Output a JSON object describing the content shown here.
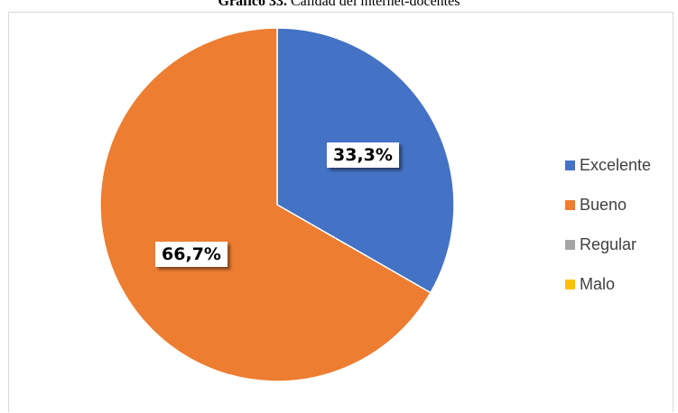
{
  "caption": {
    "number": "Gráfico 33.",
    "text": "Calidad del internet-docentes"
  },
  "chart_data": {
    "type": "pie",
    "title": "",
    "categories": [
      "Excelente",
      "Bueno",
      "Regular",
      "Malo"
    ],
    "values": [
      33.3,
      66.7,
      0,
      0
    ],
    "data_labels": [
      "33,3%",
      "66,7%",
      "",
      ""
    ],
    "colors": [
      "#4472C4",
      "#ED7D31",
      "#A5A5A5",
      "#FFC000"
    ],
    "legend_position": "right",
    "start_angle_deg": 0,
    "direction": "clockwise"
  }
}
